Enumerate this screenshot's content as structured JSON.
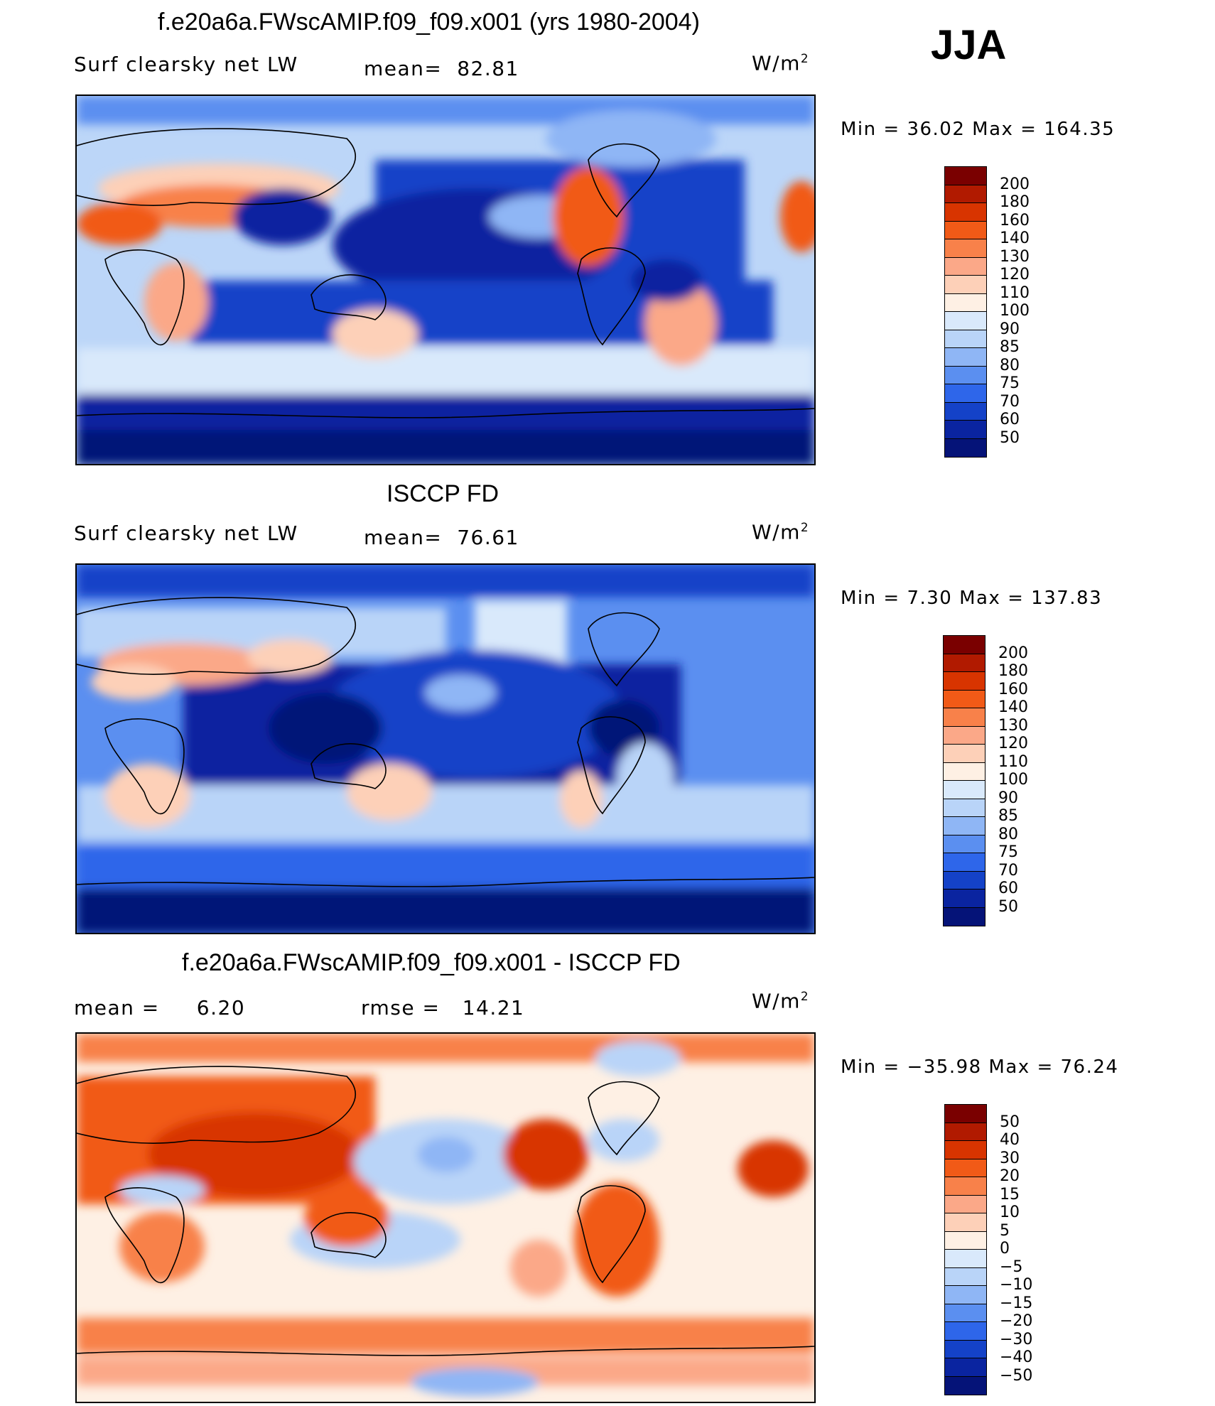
{
  "season": "JJA",
  "chart_data": [
    {
      "type": "heatmap",
      "title": "f.e20a6a.FWscAMIP.f09_f09.x001 (yrs 1980-2004)",
      "variable": "Surf clearsky net LW",
      "mean_label": "mean=",
      "mean_value": "82.81",
      "units": "W/m",
      "units_exp": "2",
      "minmax": "Min =    36.02 Max  =  164.35",
      "levels": [
        "200",
        "180",
        "160",
        "140",
        "130",
        "120",
        "110",
        "100",
        "90",
        "85",
        "80",
        "75",
        "70",
        "60",
        "50"
      ],
      "colors": [
        "#7a0000",
        "#b11a00",
        "#d83400",
        "#f15a17",
        "#f8814a",
        "#fba888",
        "#fdd0b8",
        "#fef0e4",
        "#d9e9fb",
        "#b9d4f8",
        "#8fb6f5",
        "#5b8ff0",
        "#2e66ea",
        "#1442c8",
        "#0a24a0",
        "#051378"
      ]
    },
    {
      "type": "heatmap",
      "title": "ISCCP FD",
      "variable": "Surf clearsky net LW",
      "mean_label": "mean=",
      "mean_value": "76.61",
      "units": "W/m",
      "units_exp": "2",
      "minmax": "Min =     7.30 Max  =  137.83",
      "levels": [
        "200",
        "180",
        "160",
        "140",
        "130",
        "120",
        "110",
        "100",
        "90",
        "85",
        "80",
        "75",
        "70",
        "60",
        "50"
      ],
      "colors": [
        "#7a0000",
        "#b11a00",
        "#d83400",
        "#f15a17",
        "#f8814a",
        "#fba888",
        "#fdd0b8",
        "#fef0e4",
        "#d9e9fb",
        "#b9d4f8",
        "#8fb6f5",
        "#5b8ff0",
        "#2e66ea",
        "#1442c8",
        "#0a24a0",
        "#051378"
      ]
    },
    {
      "type": "heatmap",
      "title": "f.e20a6a.FWscAMIP.f09_f09.x001 - ISCCP FD",
      "mean_label": "mean  =",
      "mean_value": "6.20",
      "rmse_label": "rmse  =",
      "rmse_value": "14.21",
      "units": "W/m",
      "units_exp": "2",
      "minmax": "Min  = −35.98 Max  =    76.24",
      "levels": [
        "50",
        "40",
        "30",
        "20",
        "15",
        "10",
        "5",
        "0",
        "−5",
        "−10",
        "−15",
        "−20",
        "−30",
        "−40",
        "−50"
      ],
      "colors": [
        "#7a0000",
        "#b11a00",
        "#d83400",
        "#f15a17",
        "#f8814a",
        "#fba888",
        "#fdd0b8",
        "#fef0e4",
        "#d9e9fb",
        "#b9d4f8",
        "#8fb6f5",
        "#5b8ff0",
        "#2e66ea",
        "#1442c8",
        "#0a24a0",
        "#051378"
      ]
    }
  ]
}
